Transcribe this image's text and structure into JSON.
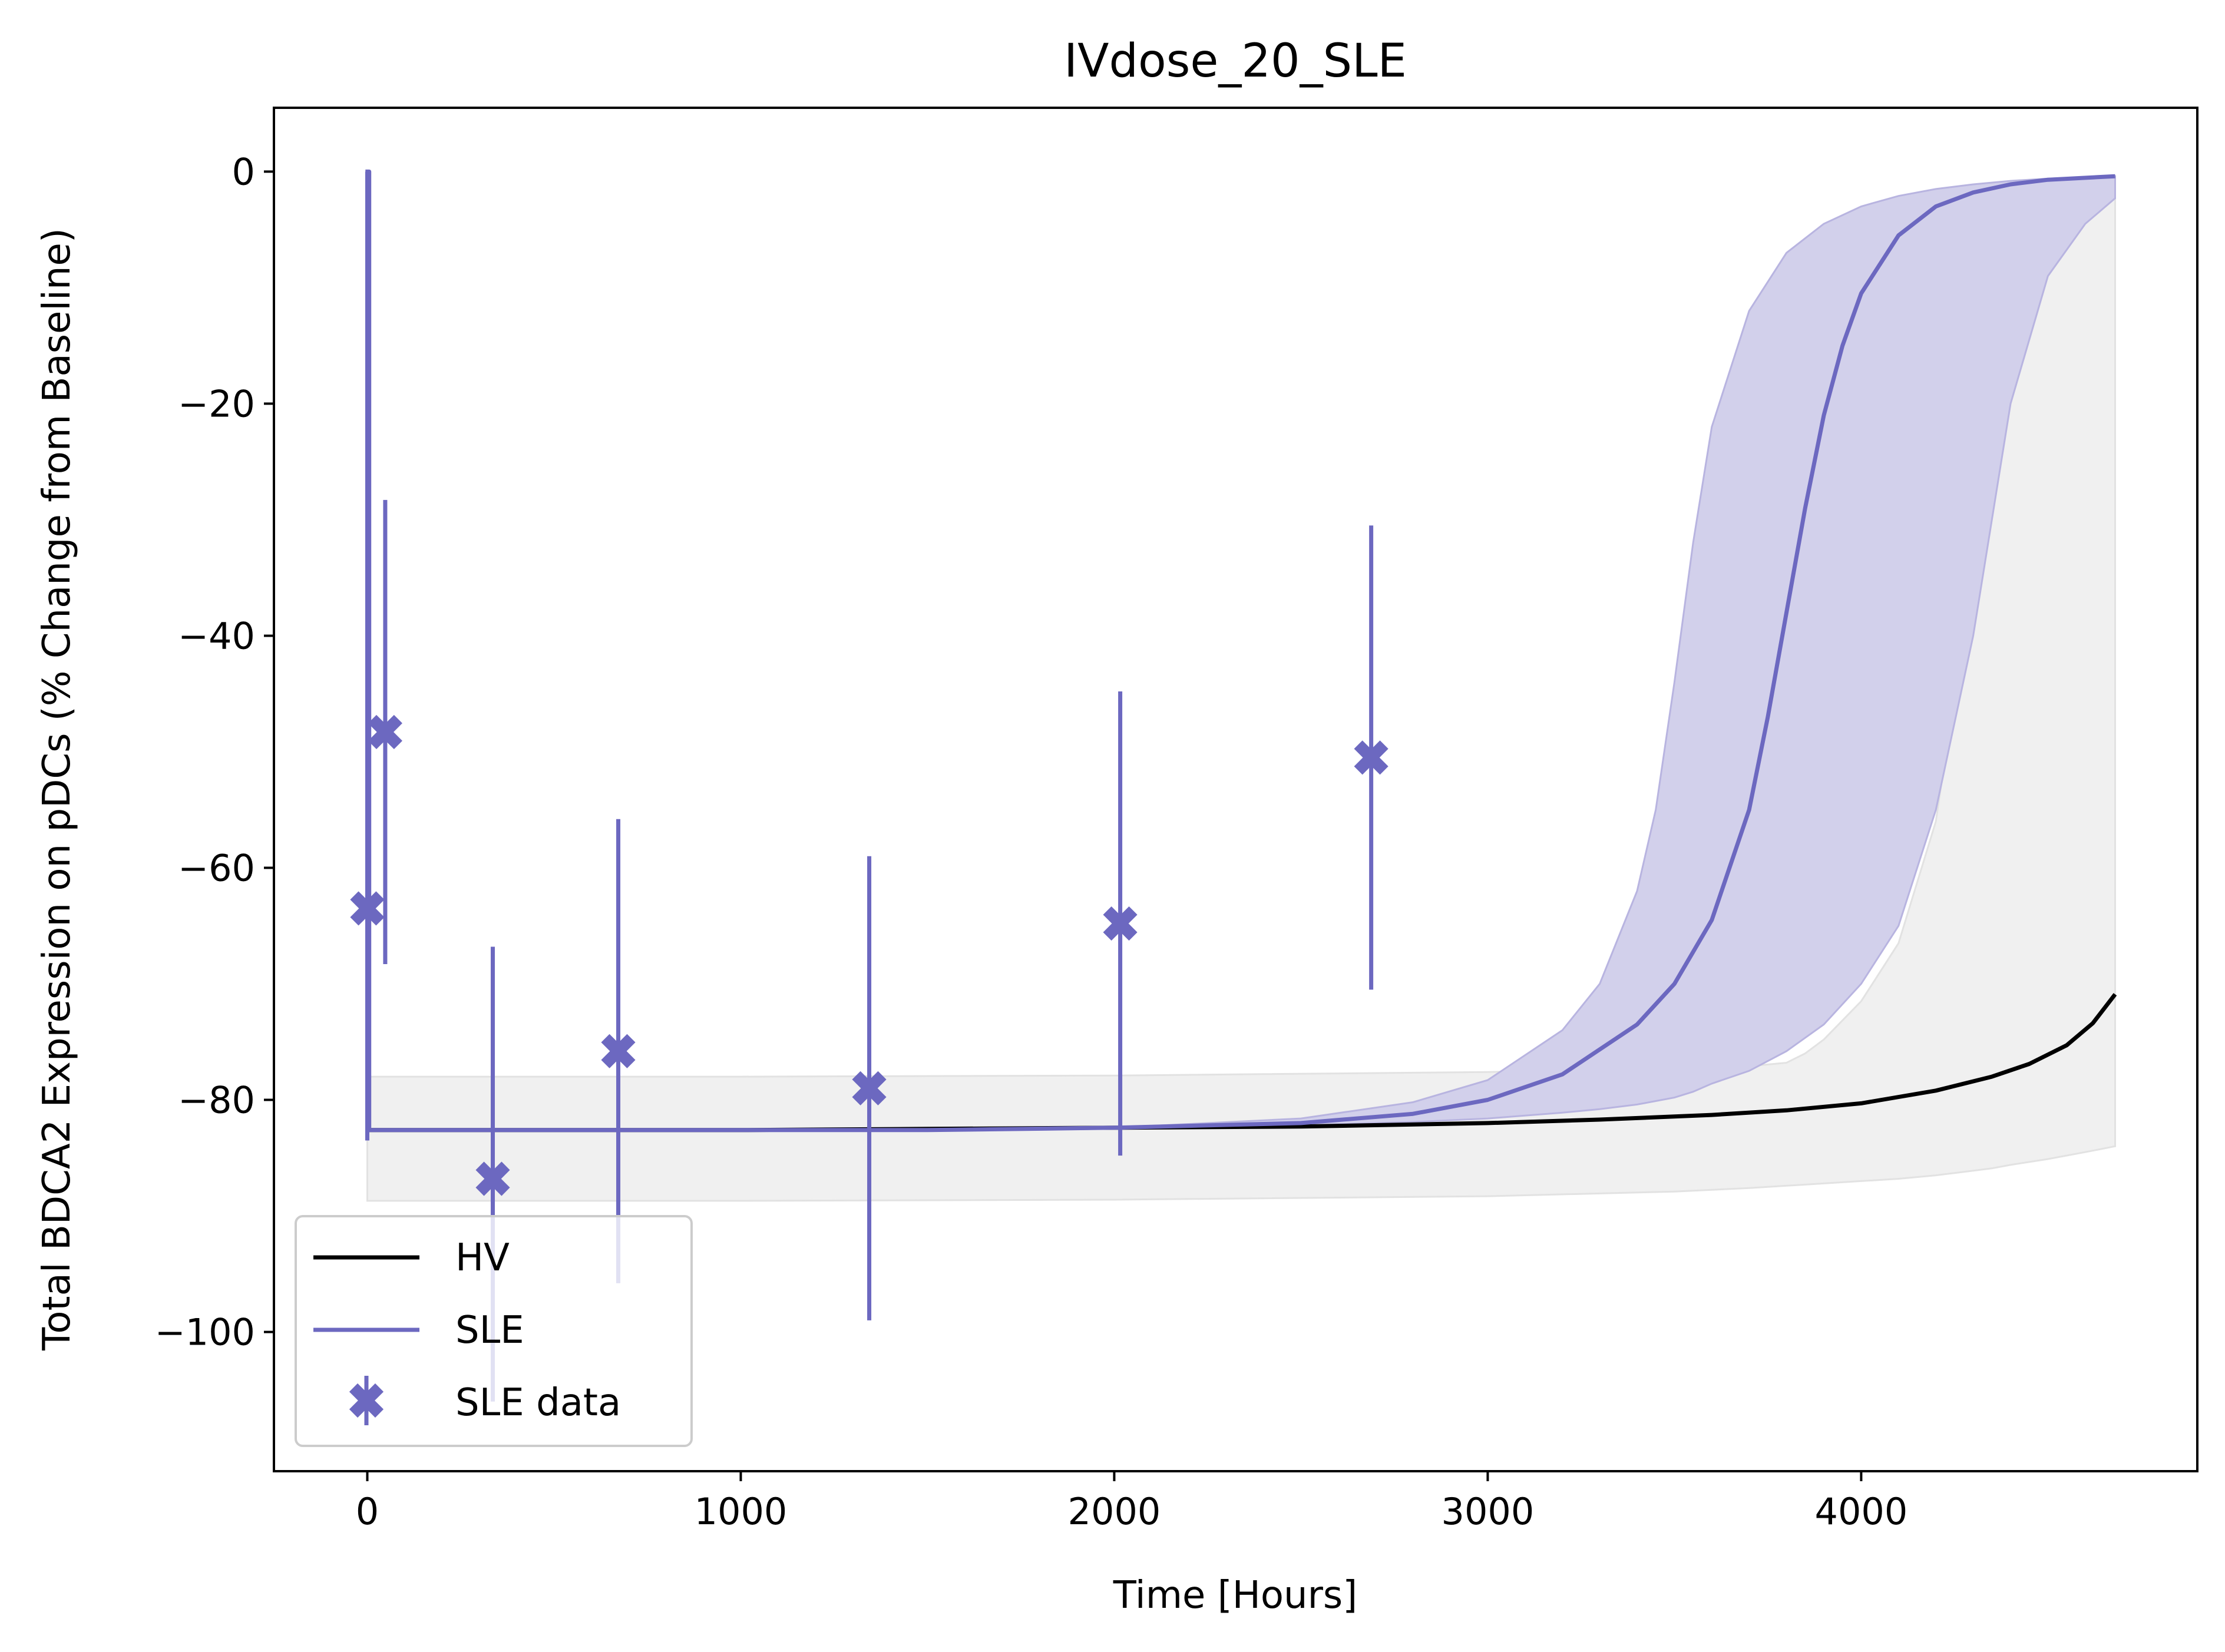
{
  "chart_data": {
    "type": "line",
    "title": "IVdose_20_SLE",
    "xlabel": "Time [Hours]",
    "ylabel": "Total BDCA2 Expression on pDCs (% Change from Baseline)",
    "xlim": [
      -250,
      4900
    ],
    "ylim": [
      -112,
      5.5
    ],
    "xticks": [
      {
        "value": 0,
        "label": "0"
      },
      {
        "value": 1000,
        "label": "1000"
      },
      {
        "value": 2000,
        "label": "2000"
      },
      {
        "value": 3000,
        "label": "3000"
      },
      {
        "value": 4000,
        "label": "4000"
      }
    ],
    "yticks": [
      {
        "value": 0,
        "label": "0"
      },
      {
        "value": -20,
        "label": "−20"
      },
      {
        "value": -40,
        "label": "−40"
      },
      {
        "value": -60,
        "label": "−60"
      },
      {
        "value": -80,
        "label": "−80"
      },
      {
        "value": -100,
        "label": "−100"
      }
    ],
    "grid": false,
    "legend_position": "lower-left",
    "series": [
      {
        "name": "HV",
        "kind": "line",
        "color": "#000000",
        "x": [
          0,
          500,
          1000,
          1500,
          2000,
          2500,
          3000,
          3300,
          3600,
          3800,
          4000,
          4200,
          4350,
          4450,
          4550,
          4620,
          4680
        ],
        "y": [
          -82.6,
          -82.6,
          -82.6,
          -82.5,
          -82.4,
          -82.3,
          -82.0,
          -81.7,
          -81.3,
          -80.9,
          -80.3,
          -79.2,
          -78.0,
          -76.9,
          -75.3,
          -73.4,
          -70.9
        ]
      },
      {
        "name": "HV band",
        "kind": "band",
        "color": "#f0f0f0",
        "edge_color": "#e2e2e2",
        "x": [
          0,
          1000,
          2000,
          3000,
          3500,
          3700,
          3800,
          3850,
          3900,
          4000,
          4100,
          4200,
          4250,
          4300,
          4350,
          4400,
          4500,
          4600,
          4680
        ],
        "upper": [
          -78.0,
          -78.0,
          -77.9,
          -77.6,
          -77.3,
          -77.1,
          -76.8,
          -76.0,
          -74.8,
          -71.5,
          -66.5,
          -56.0,
          -45.0,
          -30.0,
          -18.0,
          -11.0,
          -6.0,
          -3.5,
          -2.3
        ],
        "lower": [
          -88.7,
          -88.7,
          -88.6,
          -88.3,
          -87.9,
          -87.6,
          -87.4,
          -87.3,
          -87.2,
          -87.0,
          -86.8,
          -86.5,
          -86.3,
          -86.1,
          -85.9,
          -85.6,
          -85.1,
          -84.5,
          -84.0
        ]
      },
      {
        "name": "SLE band",
        "kind": "band",
        "color": "#d2d0eb",
        "edge_color": "#b8b4e0",
        "x": [
          0,
          1000,
          2000,
          2500,
          2800,
          3000,
          3200,
          3300,
          3400,
          3450,
          3500,
          3550,
          3600,
          3700,
          3800,
          3900,
          4000,
          4100,
          4200,
          4300,
          4400,
          4500,
          4600,
          4680
        ],
        "upper": [
          -82.6,
          -82.6,
          -82.4,
          -81.6,
          -80.2,
          -78.3,
          -74.0,
          -70.0,
          -62.0,
          -55.0,
          -44.0,
          -32.0,
          -22.0,
          -12.0,
          -7.0,
          -4.5,
          -3.0,
          -2.1,
          -1.5,
          -1.1,
          -0.8,
          -0.6,
          -0.5,
          -0.4
        ],
        "lower": [
          -82.6,
          -82.6,
          -82.5,
          -82.2,
          -81.9,
          -81.6,
          -81.1,
          -80.8,
          -80.4,
          -80.1,
          -79.8,
          -79.3,
          -78.6,
          -77.5,
          -75.8,
          -73.5,
          -70.0,
          -65.0,
          -55.0,
          -40.0,
          -20.0,
          -9.0,
          -4.5,
          -2.3
        ]
      },
      {
        "name": "SLE",
        "kind": "line",
        "color": "#6c68c0",
        "x": [
          -5,
          -5,
          5,
          5,
          500,
          1000,
          1500,
          2000,
          2500,
          2800,
          3000,
          3200,
          3400,
          3500,
          3600,
          3700,
          3750,
          3800,
          3850,
          3900,
          3950,
          4000,
          4100,
          4200,
          4300,
          4400,
          4500,
          4680
        ],
        "y": [
          0,
          0,
          0,
          -82.6,
          -82.6,
          -82.6,
          -82.6,
          -82.4,
          -82.0,
          -81.2,
          -80.0,
          -77.8,
          -73.5,
          -70.0,
          -64.5,
          -55.0,
          -47.0,
          -38.0,
          -29.0,
          -21.0,
          -15.0,
          -10.5,
          -5.5,
          -3.0,
          -1.8,
          -1.1,
          -0.7,
          -0.4
        ]
      },
      {
        "name": "SLE data",
        "kind": "errorbar",
        "color": "#6c68c0",
        "points": [
          {
            "x": 0,
            "y": -63.5,
            "low": -83.5,
            "high": 0.0
          },
          {
            "x": 48,
            "y": -48.3,
            "low": -68.3,
            "high": -28.3
          },
          {
            "x": 336,
            "y": -86.8,
            "low": -106.0,
            "high": -66.8
          },
          {
            "x": 672,
            "y": -75.8,
            "low": -95.8,
            "high": -55.8
          },
          {
            "x": 1344,
            "y": -79.0,
            "low": -99.0,
            "high": -59.0
          },
          {
            "x": 2016,
            "y": -64.8,
            "low": -84.8,
            "high": -44.8
          },
          {
            "x": 2688,
            "y": -50.5,
            "low": -70.5,
            "high": -30.5
          }
        ]
      }
    ],
    "legend": [
      {
        "label": "HV",
        "kind": "line",
        "color": "#000000"
      },
      {
        "label": "SLE",
        "kind": "line",
        "color": "#6c68c0"
      },
      {
        "label": "SLE data",
        "kind": "marker",
        "color": "#6c68c0"
      }
    ]
  }
}
